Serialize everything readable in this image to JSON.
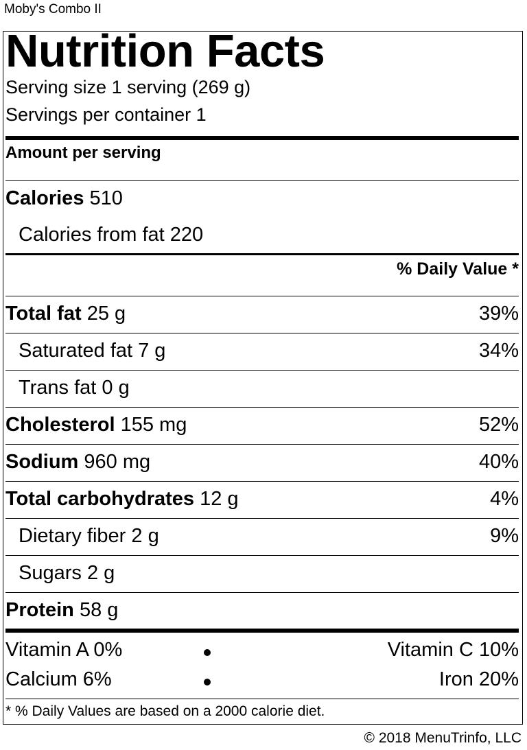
{
  "product_name": "Moby's Combo II",
  "heading": "Nutrition Facts",
  "serving_size": "Serving size 1 serving (269 g)",
  "servings_per_container": "Servings per container 1",
  "amount_per_serving": "Amount per serving",
  "calories": {
    "label": "Calories",
    "value": "510"
  },
  "calories_from_fat": "Calories from fat 220",
  "daily_value_header": "% Daily Value *",
  "nutrients": [
    {
      "label": "Total fat",
      "amount": "25 g",
      "dv": "39%",
      "bold": true
    },
    {
      "label": "Saturated fat",
      "amount": "7 g",
      "dv": "34%",
      "bold": false
    },
    {
      "label": "Trans fat",
      "amount": "0 g",
      "dv": "",
      "bold": false
    },
    {
      "label": "Cholesterol",
      "amount": "155 mg",
      "dv": "52%",
      "bold": true
    },
    {
      "label": "Sodium",
      "amount": "960 mg",
      "dv": "40%",
      "bold": true
    },
    {
      "label": "Total carbohydrates",
      "amount": "12 g",
      "dv": "4%",
      "bold": true
    },
    {
      "label": "Dietary fiber",
      "amount": "2 g",
      "dv": "9%",
      "bold": false
    },
    {
      "label": "Sugars",
      "amount": "2 g",
      "dv": "",
      "bold": false
    },
    {
      "label": "Protein",
      "amount": "58 g",
      "dv": "",
      "bold": true
    }
  ],
  "vitamins": {
    "vitamin_a": "Vitamin A 0%",
    "vitamin_c": "Vitamin C 10%",
    "calcium": "Calcium 6%",
    "iron": "Iron 20%"
  },
  "footnote": "* % Daily Values are based on a 2000 calorie diet.",
  "copyright": "© 2018 MenuTrinfo, LLC"
}
